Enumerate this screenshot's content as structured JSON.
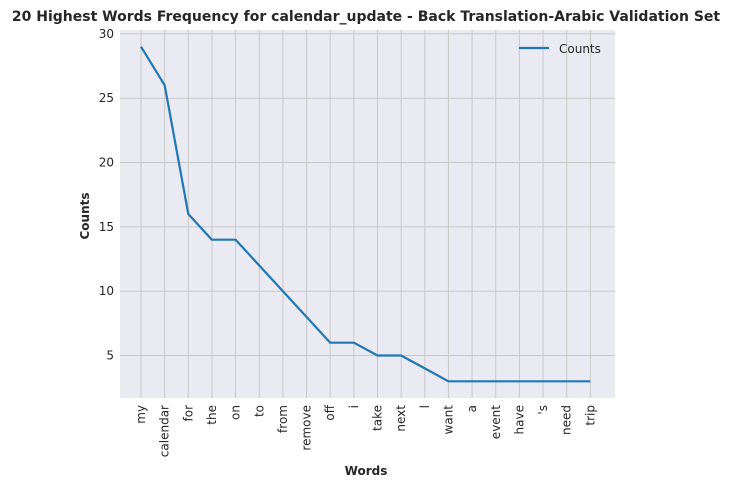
{
  "chart_data": {
    "type": "line",
    "title": "20 Highest Words Frequency for calendar_update - Back Translation-Arabic Validation Set",
    "xlabel": "Words",
    "ylabel": "Counts",
    "categories": [
      "my",
      "calendar",
      "for",
      "the",
      "on",
      "to",
      "from",
      "remove",
      "off",
      "i",
      "take",
      "next",
      "l",
      "want",
      "a",
      "event",
      "have",
      "'s",
      "need",
      "trip"
    ],
    "series": [
      {
        "name": "Counts",
        "values": [
          29,
          26,
          16,
          14,
          14,
          12,
          10,
          8,
          6,
          6,
          5,
          5,
          4,
          3,
          3,
          3,
          3,
          3,
          3,
          3
        ]
      }
    ],
    "yticks": [
      5,
      10,
      15,
      20,
      25,
      30
    ],
    "ylim": [
      1.7,
      30.3
    ],
    "grid": true,
    "legend": "upper right",
    "colors": {
      "line": "#1f77b4",
      "plot_bg": "#eaeaf2",
      "grid": "#c8c8c8",
      "text": "#262626"
    }
  }
}
